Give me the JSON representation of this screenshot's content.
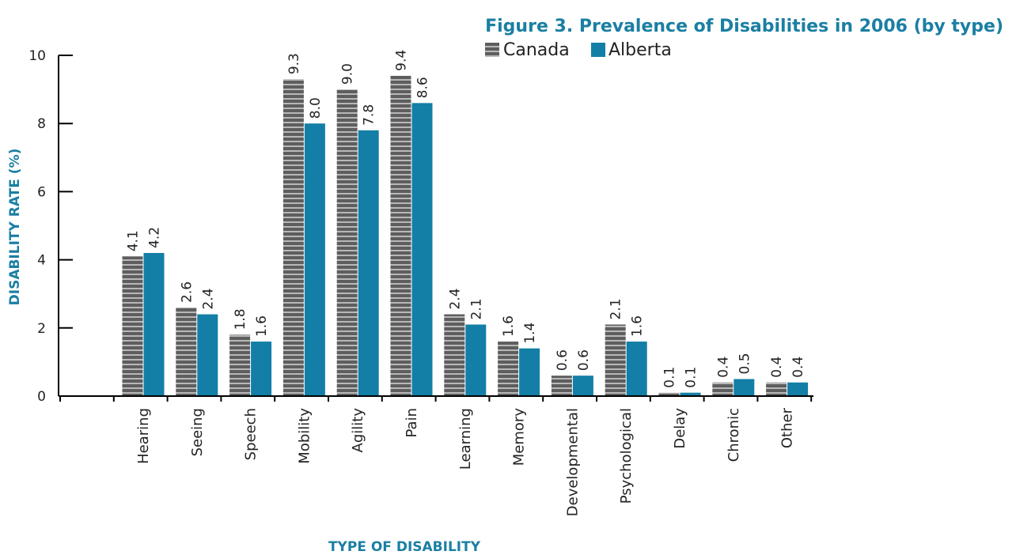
{
  "chart_data": {
    "type": "bar",
    "title": "Figure 3. Prevalence of Disabilities in 2006 (by type)",
    "xlabel": "TYPE OF DISABILITY",
    "ylabel": "DISABILITY RATE (%)",
    "ylim": [
      0,
      10
    ],
    "yticks": [
      "0",
      "2",
      "4",
      "6",
      "8",
      "10"
    ],
    "categories": [
      "Hearing",
      "Seeing",
      "Speech",
      "Mobility",
      "Agility",
      "Pain",
      "Learning",
      "Memory",
      "Developmental",
      "Psychological",
      "Delay",
      "Chronic",
      "Other"
    ],
    "series": [
      {
        "name": "Canada",
        "color": "#6d6d6d",
        "pattern": "horizontal-stripes",
        "values": [
          4.1,
          2.6,
          1.8,
          9.3,
          9.0,
          9.4,
          2.4,
          1.6,
          0.6,
          2.1,
          0.1,
          0.4,
          0.4
        ],
        "labels": [
          "4.1",
          "2.6",
          "1.8",
          "9.3",
          "9.0",
          "9.4",
          "2.4",
          "1.6",
          "0.6",
          "2.1",
          "0.1",
          "0.4",
          "0.4"
        ]
      },
      {
        "name": "Alberta",
        "color": "#137fa6",
        "pattern": "solid",
        "values": [
          4.2,
          2.4,
          1.6,
          8.0,
          7.8,
          8.6,
          2.1,
          1.4,
          0.6,
          1.6,
          0.1,
          0.5,
          0.4
        ],
        "labels": [
          "4.2",
          "2.4",
          "1.6",
          "8.0",
          "7.8",
          "8.6",
          "2.1",
          "1.4",
          "0.6",
          "1.6",
          "0.1",
          "0.5",
          "0.4"
        ]
      }
    ],
    "legend_position": "top-right",
    "grid": false,
    "axis_color": "#000000",
    "title_color": "#1a7fa3"
  }
}
